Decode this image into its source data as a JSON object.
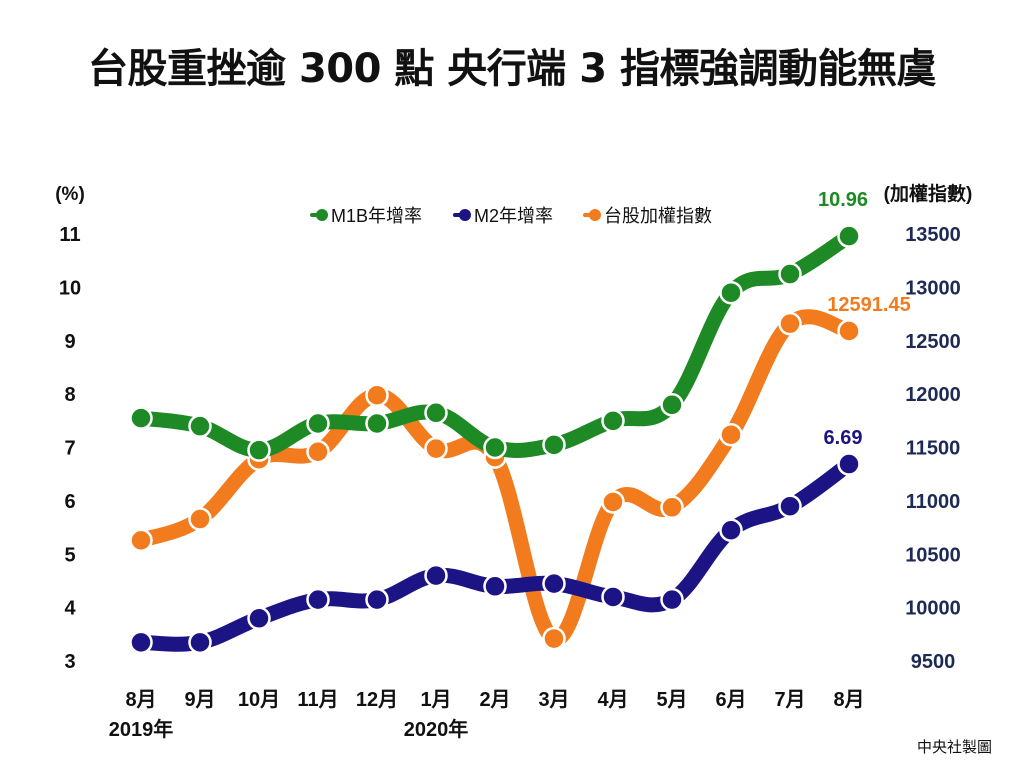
{
  "title": "台股重挫逾 300 點 央行端 3 指標強調動能無虞",
  "credit": "中央社製圖",
  "colors": {
    "m1b": "#1e8a26",
    "m2": "#1c1484",
    "index": "#f27b1e",
    "axis_left": "#111111",
    "axis_right": "#1c2a55"
  },
  "chart_data": {
    "type": "line",
    "left_axis": {
      "unit_label": "(%)",
      "ticks": [
        3,
        4,
        5,
        6,
        7,
        8,
        9,
        10,
        11
      ],
      "range": [
        3,
        11
      ]
    },
    "right_axis": {
      "unit_label": "(加權指數)",
      "ticks": [
        9500,
        10000,
        10500,
        11000,
        11500,
        12000,
        12500,
        13000,
        13500
      ],
      "range": [
        9500,
        13500
      ]
    },
    "categories": [
      "8月",
      "9月",
      "10月",
      "11月",
      "12月",
      "1月",
      "2月",
      "3月",
      "4月",
      "5月",
      "6月",
      "7月",
      "8月"
    ],
    "year_labels": [
      {
        "text": "2019年",
        "at_index": 0
      },
      {
        "text": "2020年",
        "at_index": 5
      }
    ],
    "series": [
      {
        "name": "M1B年增率",
        "axis": "left",
        "color_key": "m1b",
        "values": [
          7.55,
          7.4,
          6.95,
          7.45,
          7.45,
          7.65,
          7.0,
          7.05,
          7.5,
          7.8,
          9.9,
          10.25,
          10.96
        ],
        "end_label": "10.96"
      },
      {
        "name": "M2年增率",
        "axis": "left",
        "color_key": "m2",
        "values": [
          3.35,
          3.35,
          3.8,
          4.15,
          4.15,
          4.6,
          4.4,
          4.45,
          4.2,
          4.15,
          5.45,
          5.9,
          6.69
        ],
        "end_label": "6.69"
      },
      {
        "name": "台股加權指數",
        "axis": "right",
        "color_key": "index",
        "values": [
          10630,
          10830,
          11390,
          11460,
          11990,
          11490,
          11410,
          9710,
          10990,
          10940,
          11620,
          12660,
          12591.45
        ],
        "end_label": "12591.45"
      }
    ]
  }
}
